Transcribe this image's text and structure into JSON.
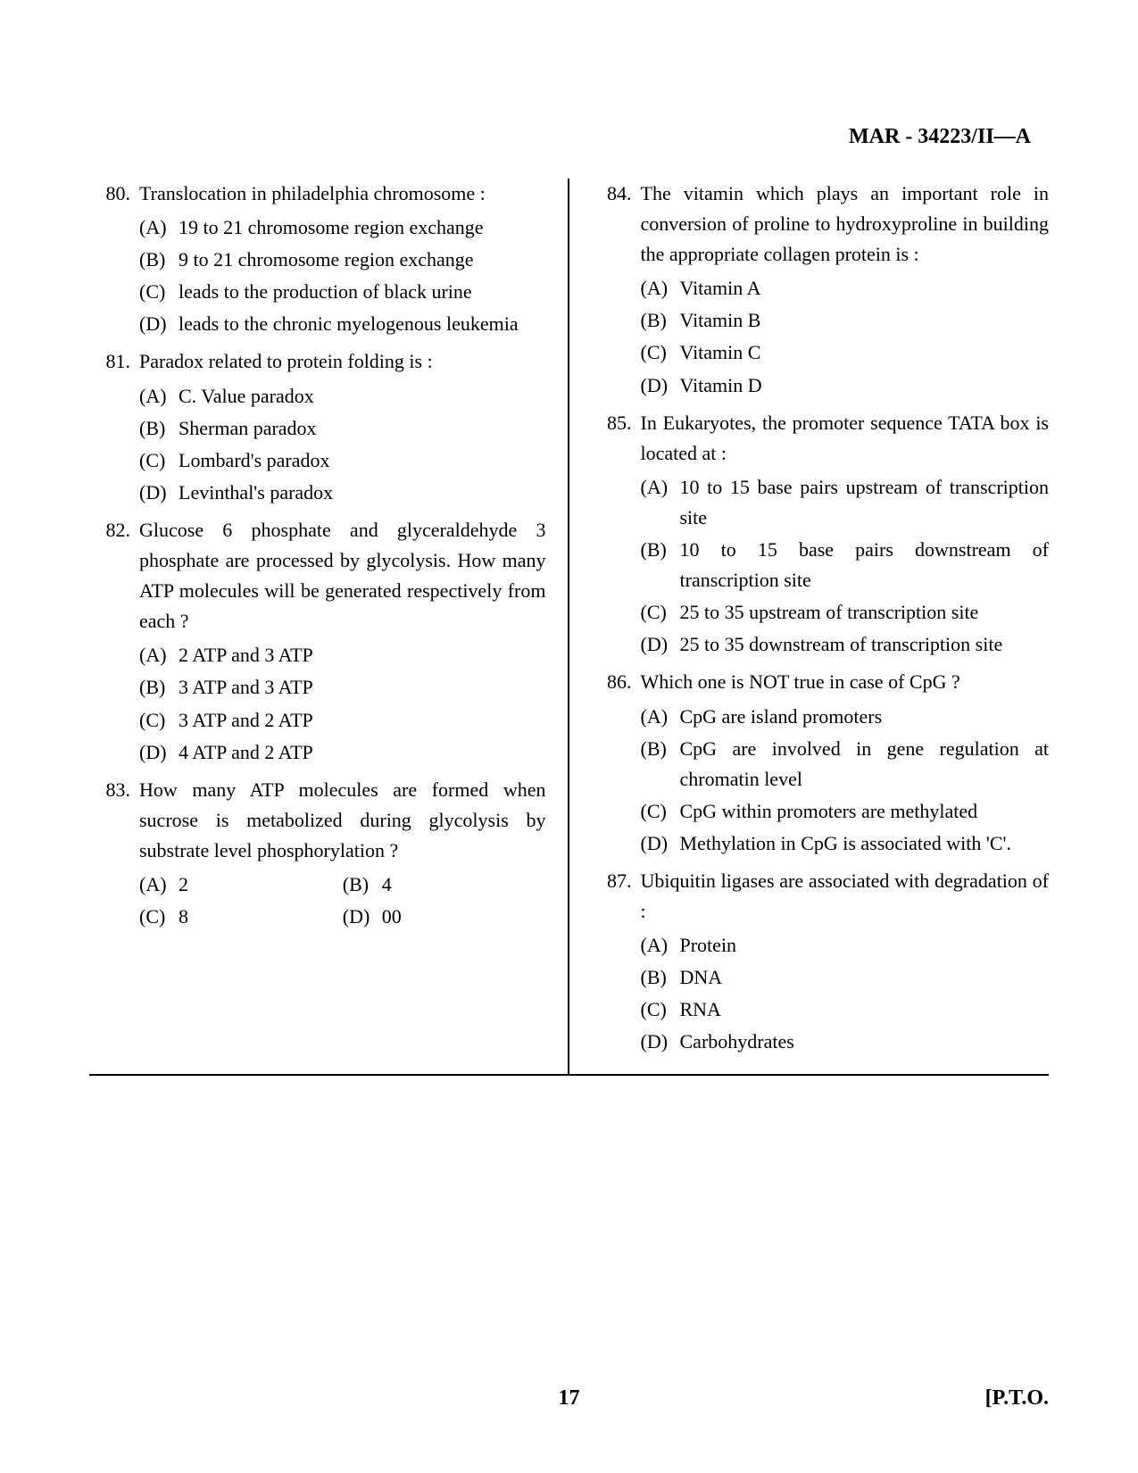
{
  "header": {
    "code": "MAR - 34223/II—A"
  },
  "footer": {
    "page": "17",
    "pto": "[P.T.O."
  },
  "left": [
    {
      "num": "80.",
      "text": "Translocation in philadelphia chromosome :",
      "options": [
        {
          "label": "(A)",
          "text": "19 to 21 chromosome region exchange"
        },
        {
          "label": "(B)",
          "text": "9 to 21 chromosome region exchange"
        },
        {
          "label": "(C)",
          "text": "leads to the production of black urine"
        },
        {
          "label": "(D)",
          "text": "leads to the chronic myelogenous leukemia"
        }
      ]
    },
    {
      "num": "81.",
      "text": "Paradox related to protein folding is :",
      "options": [
        {
          "label": "(A)",
          "text": "C. Value paradox"
        },
        {
          "label": "(B)",
          "text": "Sherman paradox"
        },
        {
          "label": "(C)",
          "text": "Lombard's paradox"
        },
        {
          "label": "(D)",
          "text": "Levinthal's paradox"
        }
      ]
    },
    {
      "num": "82.",
      "text": "Glucose 6 phosphate and glyceraldehyde 3 phosphate are processed by glycolysis. How many ATP molecules will be generated respectively from each ?",
      "options": [
        {
          "label": "(A)",
          "text": "2 ATP and 3 ATP"
        },
        {
          "label": "(B)",
          "text": "3 ATP and 3 ATP"
        },
        {
          "label": "(C)",
          "text": "3 ATP and 2 ATP"
        },
        {
          "label": "(D)",
          "text": "4 ATP and 2 ATP"
        }
      ]
    },
    {
      "num": "83.",
      "text": "How many ATP molecules are formed when sucrose is metabolized during glycolysis by substrate level phosphorylation ?",
      "inline": true,
      "options": [
        {
          "label": "(A)",
          "text": "2"
        },
        {
          "label": "(B)",
          "text": "4"
        },
        {
          "label": "(C)",
          "text": "8"
        },
        {
          "label": "(D)",
          "text": "00"
        }
      ]
    }
  ],
  "right": [
    {
      "num": "84.",
      "text": "The vitamin which plays an important role in conversion of proline to hydroxyproline in building the appropriate collagen protein is :",
      "options": [
        {
          "label": "(A)",
          "text": "Vitamin A"
        },
        {
          "label": "(B)",
          "text": "Vitamin B"
        },
        {
          "label": "(C)",
          "text": "Vitamin C"
        },
        {
          "label": "(D)",
          "text": "Vitamin D"
        }
      ]
    },
    {
      "num": "85.",
      "text": "In Eukaryotes, the promoter sequence TATA box is located at :",
      "options": [
        {
          "label": "(A)",
          "text": "10 to 15 base pairs upstream of transcription site"
        },
        {
          "label": "(B)",
          "text": "10 to 15 base pairs downstream of transcription site"
        },
        {
          "label": "(C)",
          "text": "25 to 35 upstream of trans­cription site"
        },
        {
          "label": "(D)",
          "text": "25 to 35 downstream of transcription site"
        }
      ]
    },
    {
      "num": "86.",
      "text": "Which one is NOT true in case of CpG ?",
      "options": [
        {
          "label": "(A)",
          "text": "CpG are island promoters"
        },
        {
          "label": "(B)",
          "text": "CpG are involved in gene regulation at chromatin level"
        },
        {
          "label": "(C)",
          "text": "CpG within promoters are methylated"
        },
        {
          "label": "(D)",
          "text": "Methylation in CpG is associated with 'C'."
        }
      ]
    },
    {
      "num": "87.",
      "text": "Ubiquitin ligases are associated with degradation of :",
      "options": [
        {
          "label": "(A)",
          "text": "Protein"
        },
        {
          "label": "(B)",
          "text": "DNA"
        },
        {
          "label": "(C)",
          "text": "RNA"
        },
        {
          "label": "(D)",
          "text": "Carbohydrates"
        }
      ]
    }
  ]
}
